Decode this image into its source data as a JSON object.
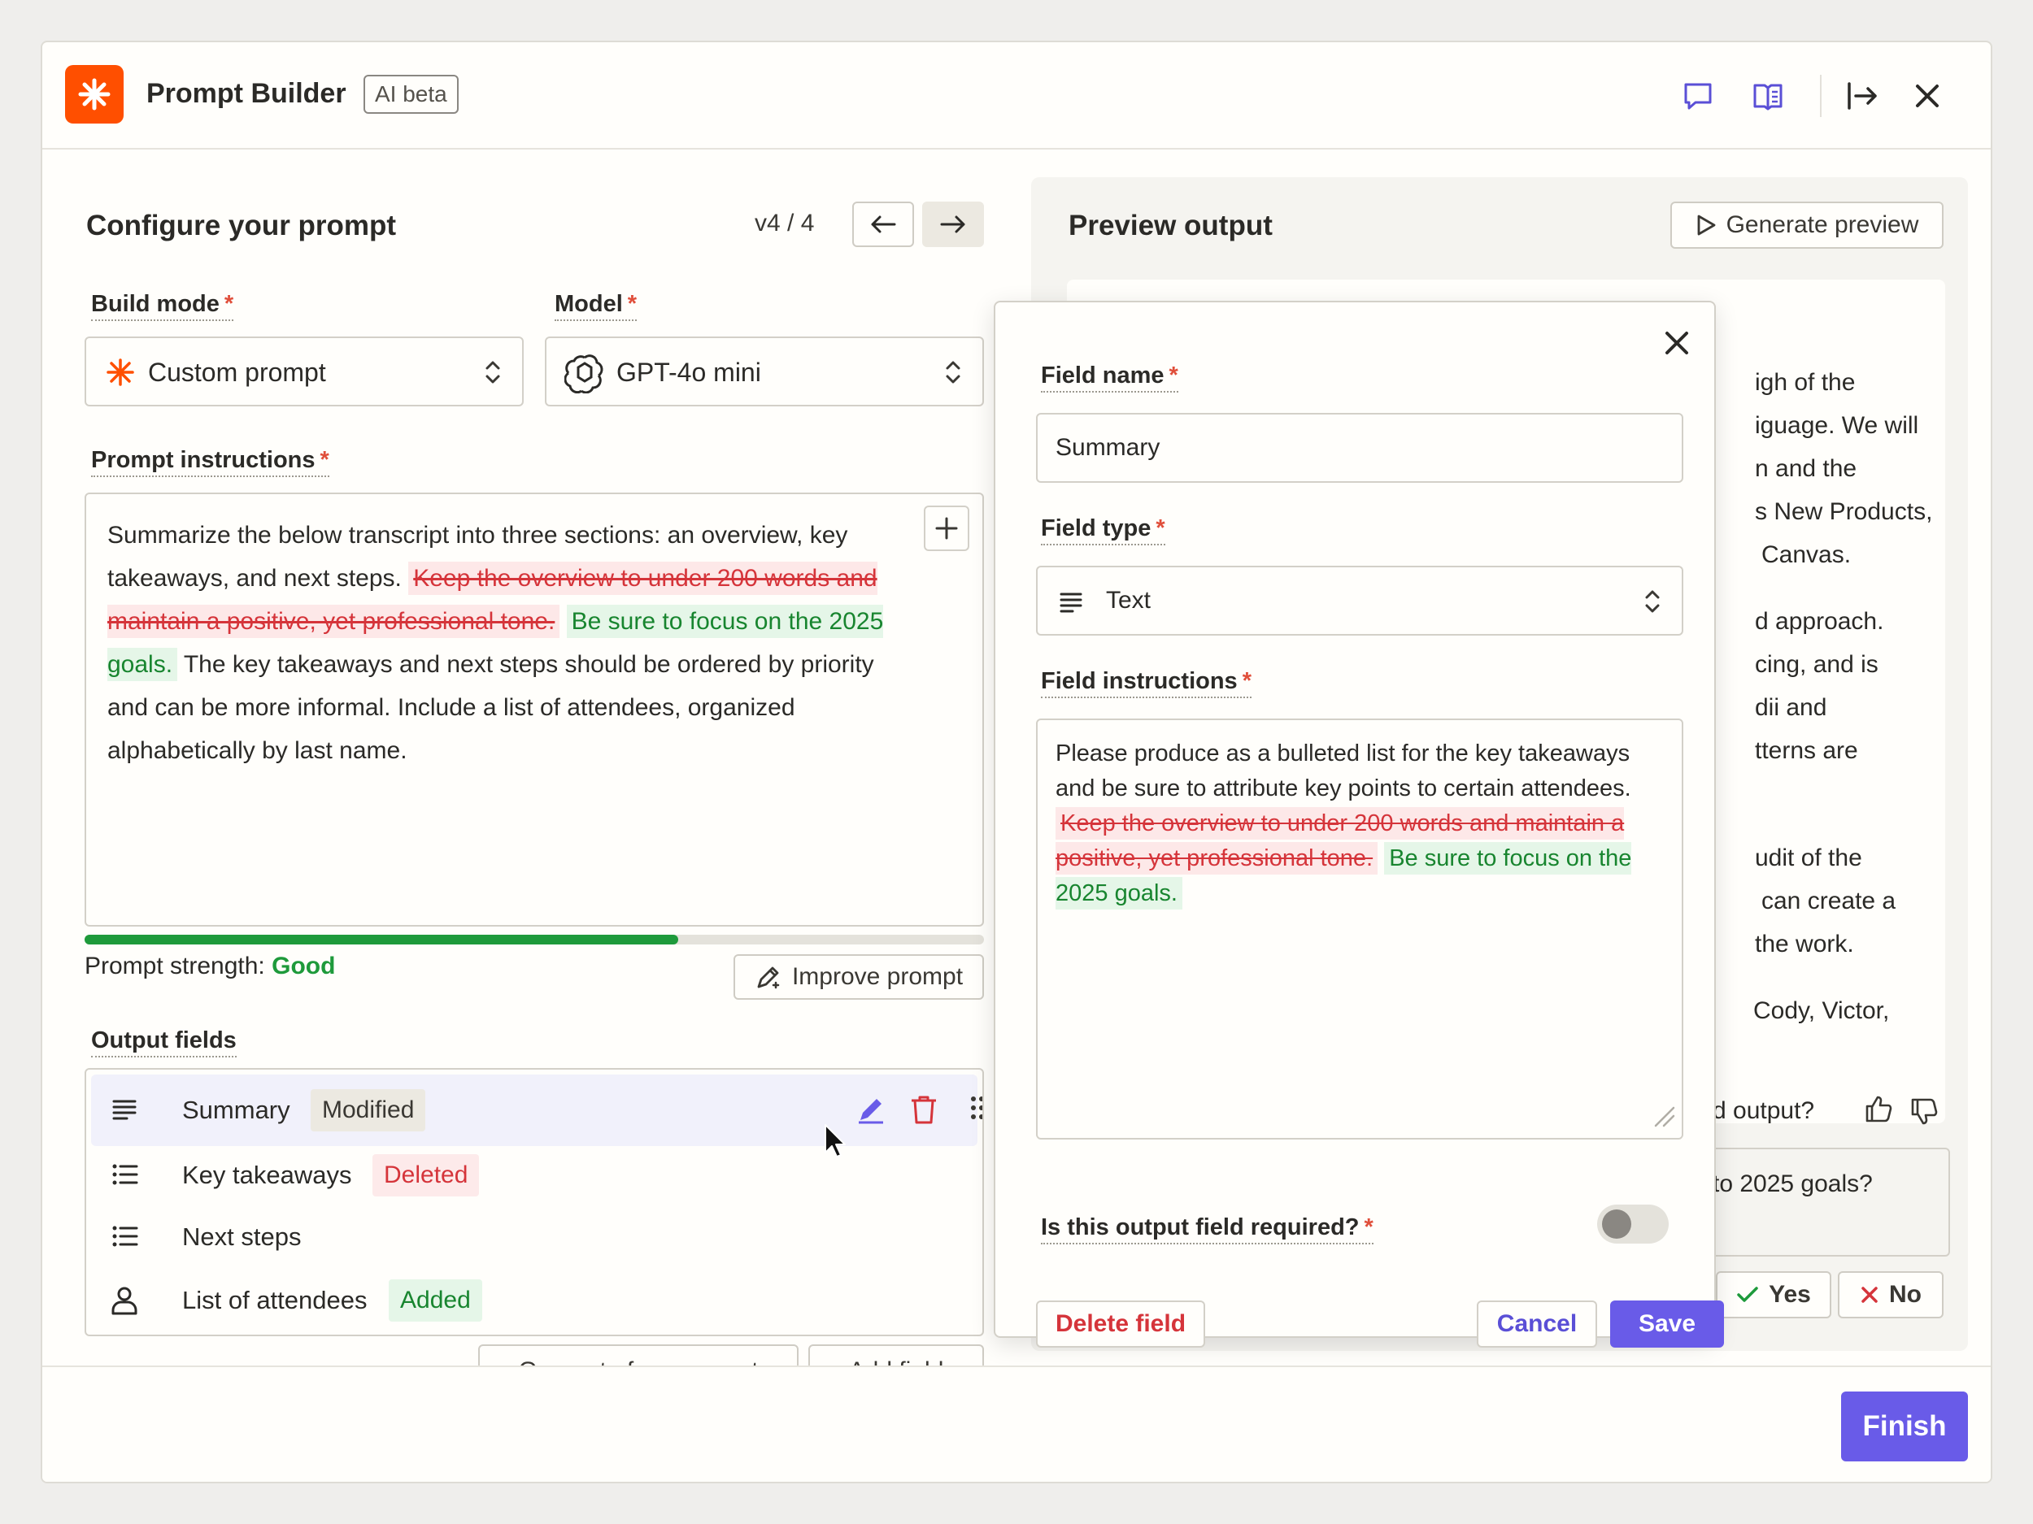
{
  "app": {
    "title": "Prompt Builder",
    "badge": "AI beta"
  },
  "configure": {
    "heading": "Configure your prompt",
    "version": "v4 / 4",
    "build_mode_label": "Build mode",
    "build_mode_value": "Custom prompt",
    "model_label": "Model",
    "model_value": "GPT-4o mini",
    "instructions_label": "Prompt instructions",
    "prompt_parts": {
      "p1": "Summarize the below transcript into three sections: an overview, key takeaways, and next steps.",
      "deleted": "Keep the overview to under 200 words and maintain a positive, yet professional tone.",
      "added": "Be sure to focus on the 2025 goals.",
      "p2": "The key takeaways and next steps should be ordered by priority and can be more informal. Include a list of attendees, organized alphabetically by last name."
    },
    "strength_label": "Prompt strength:",
    "strength_value": "Good",
    "strength_fraction": 0.66,
    "improve_label": "Improve prompt",
    "output_fields_label": "Output fields",
    "fields": [
      {
        "name": "Summary",
        "tag": "Modified"
      },
      {
        "name": "Key takeaways",
        "tag": "Deleted"
      },
      {
        "name": "Next steps",
        "tag": ""
      },
      {
        "name": "List of attendees",
        "tag": "Added"
      }
    ],
    "generate_from_prompt": "Generate from prompt",
    "add_field": "Add field"
  },
  "preview": {
    "heading": "Preview output",
    "generate_label": "Generate preview",
    "lines": [
      "igh of the",
      "iguage. We will",
      "n and the",
      "s New Products,",
      "Canvas.",
      "d approach.",
      "cing, and is",
      "dii and",
      "tterns are",
      "udit of the",
      "can create a",
      "the work.",
      "Cody, Victor,"
    ],
    "feedback_q": "d output?",
    "feedback_box_text": "to 2025 goals?",
    "yes_label": "Yes",
    "no_label": "No"
  },
  "popover": {
    "field_name_label": "Field name",
    "field_name_value": "Summary",
    "field_type_label": "Field type",
    "field_type_value": "Text",
    "field_instructions_label": "Field instructions",
    "instr_text": "Please produce as a bulleted list for the key takeaways and be sure to attribute key points to certain attendees.",
    "instr_deleted": "Keep the overview to under 200 words and maintain a positive, yet professional tone.",
    "instr_added": "Be sure to focus on the 2025 goals.",
    "required_label": "Is this output field required?",
    "required_on": false,
    "delete_label": "Delete field",
    "cancel_label": "Cancel",
    "save_label": "Save"
  },
  "footer": {
    "finish_label": "Finish"
  },
  "colors": {
    "brand": "#ff4f00",
    "accent": "#695be8",
    "good": "#1e9a3b",
    "danger": "#d5343a"
  }
}
